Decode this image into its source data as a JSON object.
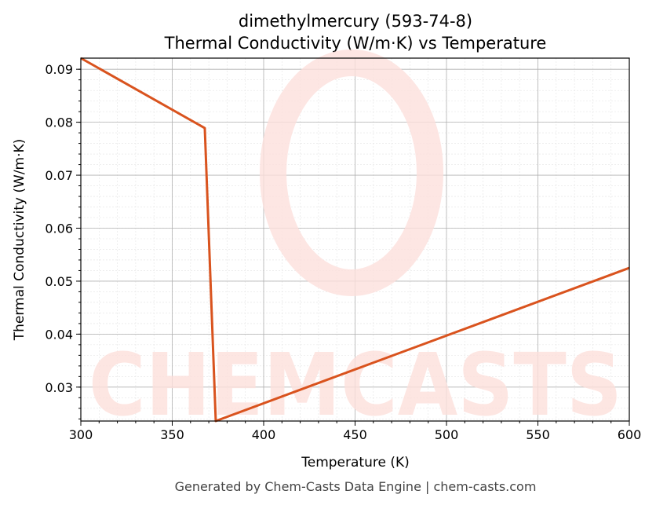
{
  "chart_data": {
    "type": "line",
    "title": "dimethylmercury (593-74-8)",
    "subtitle": "Thermal Conductivity (W/m·K) vs Temperature",
    "xlabel": "Temperature (K)",
    "ylabel": "Thermal Conductivity (W/m·K)",
    "xlim": [
      300,
      600
    ],
    "ylim": [
      0.0236,
      0.0921
    ],
    "xticks": [
      "300",
      "350",
      "400",
      "450",
      "500",
      "550",
      "600"
    ],
    "yticks": [
      "0.03",
      "0.04",
      "0.05",
      "0.06",
      "0.07",
      "0.08",
      "0.09"
    ],
    "grid": true,
    "series": [
      {
        "x": [
          300,
          367.8,
          373.8,
          600
        ],
        "y": [
          0.0921,
          0.0789,
          0.0236,
          0.0525
        ],
        "color": "#d9531e"
      }
    ],
    "watermark": "CHEMCASTS",
    "footer": "Generated by Chem-Casts Data Engine | chem-casts.com"
  }
}
